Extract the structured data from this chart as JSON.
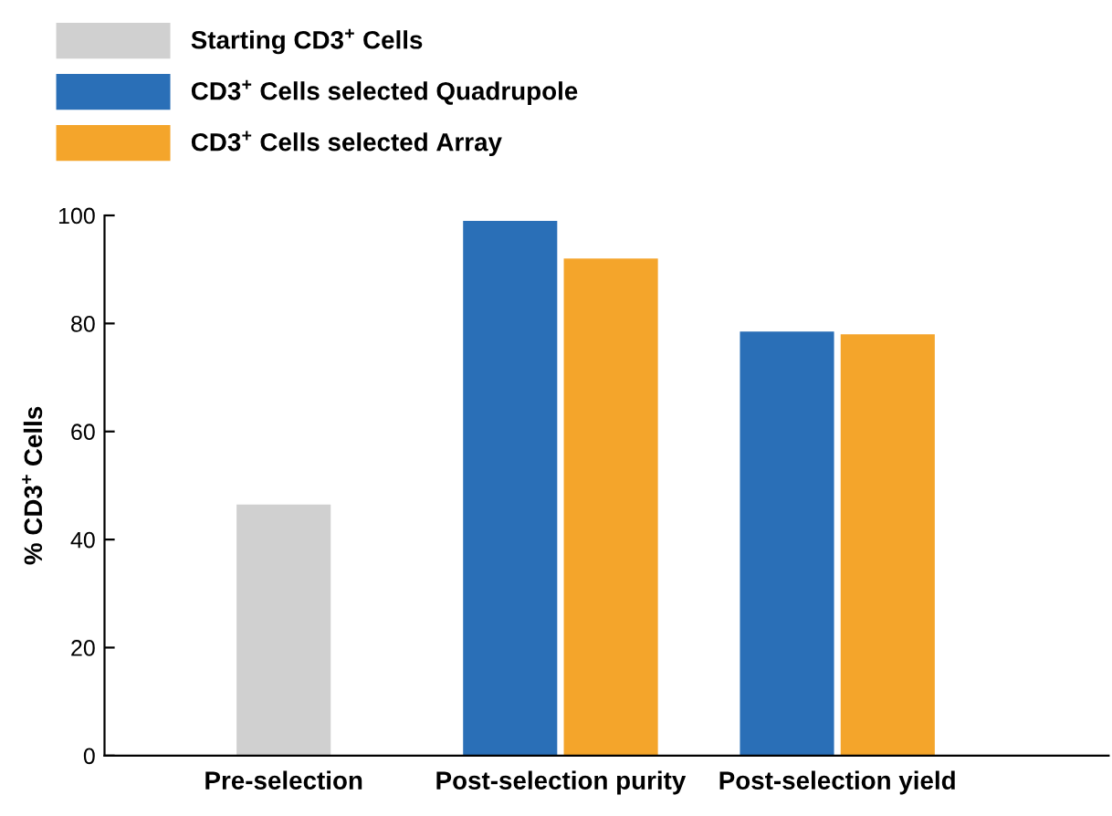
{
  "chart_data": {
    "type": "bar",
    "ylabel": "% CD3$^{+}$ Cells",
    "categories": [
      "Pre-selection",
      "Post-selection purity",
      "Post-selection yield"
    ],
    "series": [
      {
        "name": "Starting CD3$^{+}$ Cells",
        "color": "#d0d0d0",
        "values": [
          46.5,
          null,
          null
        ]
      },
      {
        "name": "CD3$^{+}$ Cells selected Quadrupole",
        "color": "#2a6fb7",
        "values": [
          null,
          99,
          78.5
        ]
      },
      {
        "name": "CD3$^{+}$ Cells selected Array",
        "color": "#f4a52b",
        "values": [
          null,
          92,
          78
        ]
      }
    ],
    "ylim": [
      0,
      100
    ],
    "yticks": [
      0,
      20,
      40,
      60,
      80,
      100
    ],
    "grid": false,
    "legend": "top left"
  }
}
